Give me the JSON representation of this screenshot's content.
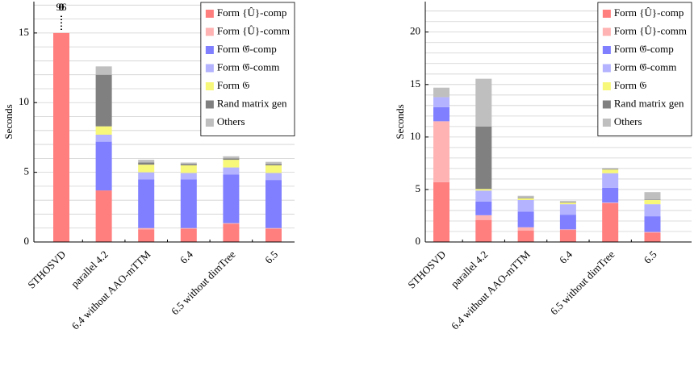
{
  "chart_data": [
    {
      "type": "bar",
      "stacked": true,
      "ylabel": "Seconds",
      "categories": [
        "STHOSVD",
        "parallel 4.2",
        "6.4 without AAO-mTTM",
        "6.4",
        "6.5 without dimTree",
        "6.5"
      ],
      "category_colors": [
        "#000000",
        "#1a1aff",
        "#2e8b2e",
        "#2e8b2e",
        "#2e8b2e",
        "#2e8b2e"
      ],
      "ylim": [
        0,
        17.25
      ],
      "yticks": [
        0,
        5,
        10,
        15
      ],
      "minor_yticks": [
        1,
        2,
        3,
        4,
        6,
        7,
        8,
        9,
        11,
        12,
        13,
        14,
        16,
        17
      ],
      "grid": true,
      "legend": "upper right",
      "y_break": 15,
      "series": [
        {
          "name": "Form {Û}-comp",
          "color": "#ff7f7f",
          "values": [
            96,
            3.7,
            0.9,
            0.95,
            1.3,
            0.95
          ]
        },
        {
          "name": "Form {Û}-comm",
          "color": "#ffb3b3",
          "values": [
            0,
            0,
            0.1,
            0.05,
            0.05,
            0.05
          ]
        },
        {
          "name": "Form 𝔊̂-comp",
          "color": "#7f7fff",
          "values": [
            0,
            3.5,
            3.5,
            3.5,
            3.5,
            3.45
          ]
        },
        {
          "name": "Form 𝔊̂-comm",
          "color": "#b3b3ff",
          "values": [
            0,
            0.5,
            0.5,
            0.45,
            0.5,
            0.5
          ]
        },
        {
          "name": "Form 𝔊",
          "color": "#f7f77a",
          "values": [
            0,
            0.6,
            0.55,
            0.55,
            0.55,
            0.55
          ]
        },
        {
          "name": "Rand matrix gen",
          "color": "#808080",
          "values": [
            0,
            3.7,
            0.15,
            0.1,
            0.1,
            0.1
          ]
        },
        {
          "name": "Others",
          "color": "#bfbfbf",
          "values": [
            0,
            0.6,
            0.2,
            0.1,
            0.15,
            0.15
          ]
        }
      ]
    },
    {
      "type": "bar",
      "stacked": true,
      "ylabel": "Seconds",
      "categories": [
        "STHOSVD",
        "parallel 4.2",
        "6.4 without AAO-mTTM",
        "6.4",
        "6.5 without dimTree",
        "6.5"
      ],
      "category_colors": [
        "#000000",
        "#1a1aff",
        "#2e8b2e",
        "#2e8b2e",
        "#2e8b2e",
        "#2e8b2e"
      ],
      "ylim": [
        0,
        22.9
      ],
      "yticks": [
        0,
        5,
        10,
        15,
        20
      ],
      "minor_yticks": [
        1,
        2,
        3,
        4,
        6,
        7,
        8,
        9,
        11,
        12,
        13,
        14,
        16,
        17,
        18,
        19,
        21,
        22
      ],
      "grid": true,
      "legend": "upper right",
      "series": [
        {
          "name": "Form {Û}-comp",
          "color": "#ff7f7f",
          "values": [
            5.7,
            2.1,
            1.1,
            1.15,
            3.7,
            0.9
          ]
        },
        {
          "name": "Form {Û}-comm",
          "color": "#ffb3b3",
          "values": [
            5.8,
            0.45,
            0.3,
            0.05,
            0.05,
            0.05
          ]
        },
        {
          "name": "Form 𝔊̂-comp",
          "color": "#7f7fff",
          "values": [
            1.35,
            1.3,
            1.5,
            1.4,
            1.4,
            1.5
          ]
        },
        {
          "name": "Form 𝔊̂-comm",
          "color": "#b3b3ff",
          "values": [
            0.95,
            1.05,
            1.1,
            1.0,
            1.4,
            1.15
          ]
        },
        {
          "name": "Form 𝔊",
          "color": "#f7f77a",
          "values": [
            0,
            0.15,
            0.15,
            0.15,
            0.35,
            0.4
          ]
        },
        {
          "name": "Rand matrix gen",
          "color": "#808080",
          "values": [
            0,
            5.95,
            0.05,
            0.05,
            0.05,
            0.05
          ]
        },
        {
          "name": "Others",
          "color": "#bfbfbf",
          "values": [
            0.9,
            4.55,
            0.2,
            0.1,
            0.1,
            0.7
          ]
        }
      ]
    }
  ]
}
